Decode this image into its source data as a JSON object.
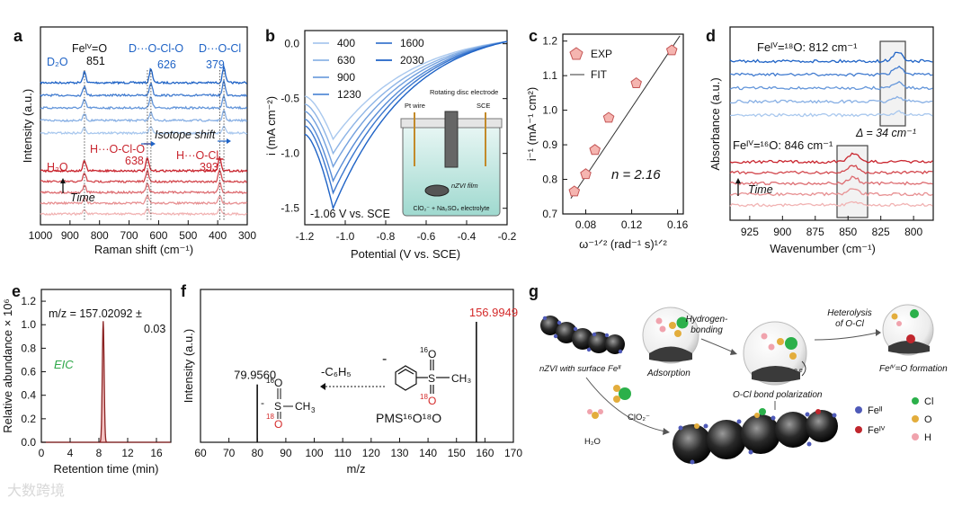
{
  "panel_letters": [
    "a",
    "b",
    "c",
    "d",
    "e",
    "f",
    "g"
  ],
  "colors": {
    "blue_dark": "#1f63c6",
    "blue_light": "#a9c8ee",
    "red_dark": "#c9252e",
    "red_light": "#f1b3b3",
    "axis": "#111111",
    "pent_fill": "#f5b5b0",
    "pent_edge": "#c45555",
    "eic": "#8b2323",
    "ms_red": "#d42a2a",
    "fe2": "#4f5ab8",
    "fe4": "#c0262d",
    "cl": "#2bb04a",
    "o": "#e3ad3c",
    "h": "#f0a3ad"
  },
  "chart_data": [
    {
      "id": "a",
      "type": "line",
      "title": "",
      "xlabel": "Raman shift (cm⁻¹)",
      "ylabel": "Intensity (a.u.)",
      "xlim": [
        1000,
        300
      ],
      "xticks": [
        1000,
        900,
        800,
        700,
        600,
        500,
        400,
        300
      ],
      "peaks_D2O": [
        851,
        626,
        379
      ],
      "peaks_H2O": [
        638,
        393
      ],
      "annotations": {
        "d2o": "D₂O",
        "h2o": "H₂O",
        "feo": "Feᴵⱽ=O",
        "feo_val": "851",
        "d_oclo": "D···O-Cl-O",
        "d_oclo_val": "626",
        "d_ocl": "D···O-Cl",
        "d_ocl_val": "379",
        "h_oclo": "H···O-Cl-O",
        "h_oclo_val": "638",
        "h_ocl": "H···O-Cl",
        "h_ocl_val": "393",
        "isotope": "Isotope shift",
        "time": "Time"
      },
      "series_count": {
        "blue": 5,
        "red": 5
      }
    },
    {
      "id": "b",
      "type": "line",
      "xlabel": "Potential (V vs. SCE)",
      "ylabel": "i (mA cm⁻²)",
      "xlim": [
        -1.2,
        -0.2
      ],
      "ylim": [
        -1.65,
        0.12
      ],
      "xticks": [
        -1.2,
        -1.0,
        -0.8,
        -0.6,
        -0.4,
        -0.2
      ],
      "yticks": [
        0.0,
        -0.5,
        -1.0,
        -1.5
      ],
      "series": [
        {
          "name": "400",
          "min": -0.87
        },
        {
          "name": "630",
          "min": -1.0
        },
        {
          "name": "900",
          "min": -1.12
        },
        {
          "name": "1230",
          "min": -1.25
        },
        {
          "name": "1600",
          "min": -1.36
        },
        {
          "name": "2030",
          "min": -1.5
        }
      ],
      "peak_potential": -1.06,
      "annotation": "-1.06 V vs. SCE",
      "inset": {
        "pt": "Pt wire",
        "rde": "Rotating disc electrode",
        "sce": "SCE",
        "film": "nZVI film",
        "electrolyte": "ClO₂⁻ + Na₂SO₄ electrolyte"
      }
    },
    {
      "id": "c",
      "type": "scatter",
      "xlabel": "ω⁻¹ᐟ² (rad⁻¹ s)¹ᐟ²",
      "ylabel": "i⁻¹ (mA⁻¹ cm²)",
      "xlim": [
        0.06,
        0.165
      ],
      "ylim": [
        0.7,
        1.22
      ],
      "xticks": [
        0.08,
        0.12,
        0.16
      ],
      "yticks": [
        0.7,
        0.8,
        0.9,
        1.0,
        1.1,
        1.2
      ],
      "x": [
        0.07,
        0.08,
        0.088,
        0.1,
        0.124,
        0.155
      ],
      "y": [
        0.765,
        0.815,
        0.885,
        0.978,
        1.078,
        1.173
      ],
      "fit": {
        "x0": 0.067,
        "y0": 0.745,
        "x1": 0.162,
        "y1": 1.215
      },
      "legend": [
        "EXP",
        "FIT"
      ],
      "annotation": "n = 2.16"
    },
    {
      "id": "d",
      "type": "line",
      "xlabel": "Wavenumber (cm⁻¹)",
      "ylabel": "Absorbance (a.u.)",
      "xlim": [
        940,
        785
      ],
      "xticks": [
        925,
        900,
        875,
        850,
        825,
        800
      ],
      "annotations": {
        "o18": "Feᴵⱽ=¹⁸O: 812 cm⁻¹",
        "o16": "Feᴵⱽ=¹⁶O: 846 cm⁻¹",
        "delta": "Δ = 34 cm⁻¹",
        "time": "Time"
      },
      "peaks": [
        812,
        846
      ],
      "series_count": {
        "blue": 5,
        "red": 5
      }
    },
    {
      "id": "e",
      "type": "line",
      "xlabel": "Retention time (min)",
      "ylabel": "Relative abundance × 10⁶",
      "xlim": [
        0,
        18
      ],
      "ylim": [
        0,
        1.3
      ],
      "xticks": [
        0,
        4,
        8,
        12,
        16
      ],
      "yticks": [
        0.0,
        0.2,
        0.4,
        0.6,
        0.8,
        1.0,
        1.2
      ],
      "peak": {
        "x": 8.6,
        "y": 1.03
      },
      "annotations": {
        "mz": "m/z = 157.02092 ±",
        "mz2": "0.03",
        "eic": "EIC"
      }
    },
    {
      "id": "f",
      "type": "bar",
      "xlabel": "m/z",
      "ylabel": "Intensity (a.u.)",
      "xlim": [
        60,
        170
      ],
      "xticks": [
        60,
        70,
        80,
        90,
        100,
        110,
        120,
        130,
        140,
        150,
        160,
        170
      ],
      "x": [
        79.956,
        156.9949
      ],
      "y": [
        0.48,
        1.0
      ],
      "labels": [
        "79.9560",
        "156.9949"
      ],
      "annotations": {
        "loss": "-C₆H₅",
        "pms": "PMS¹⁶O¹⁸O"
      }
    }
  ],
  "panel_g": {
    "nzvi": "nZVI with surface Feᴵᴵ",
    "adsorption": "Adsorption",
    "hbond": "Hydrogen-\nbonding",
    "hetero": "Heterolysis\nof O-Cl",
    "formation": "Feᴵⱽ=O formation",
    "polar": "O-Cl bond polarization",
    "clo2": "ClO₂⁻",
    "h2o": "H₂O",
    "electrons": "e e",
    "legend": [
      {
        "key": "fe2",
        "label": "Feᴵᴵ"
      },
      {
        "key": "fe4",
        "label": "Feᴵⱽ"
      },
      {
        "key": "cl",
        "label": "Cl"
      },
      {
        "key": "o",
        "label": "O"
      },
      {
        "key": "h",
        "label": "H"
      }
    ]
  },
  "watermark": "大数跨境"
}
